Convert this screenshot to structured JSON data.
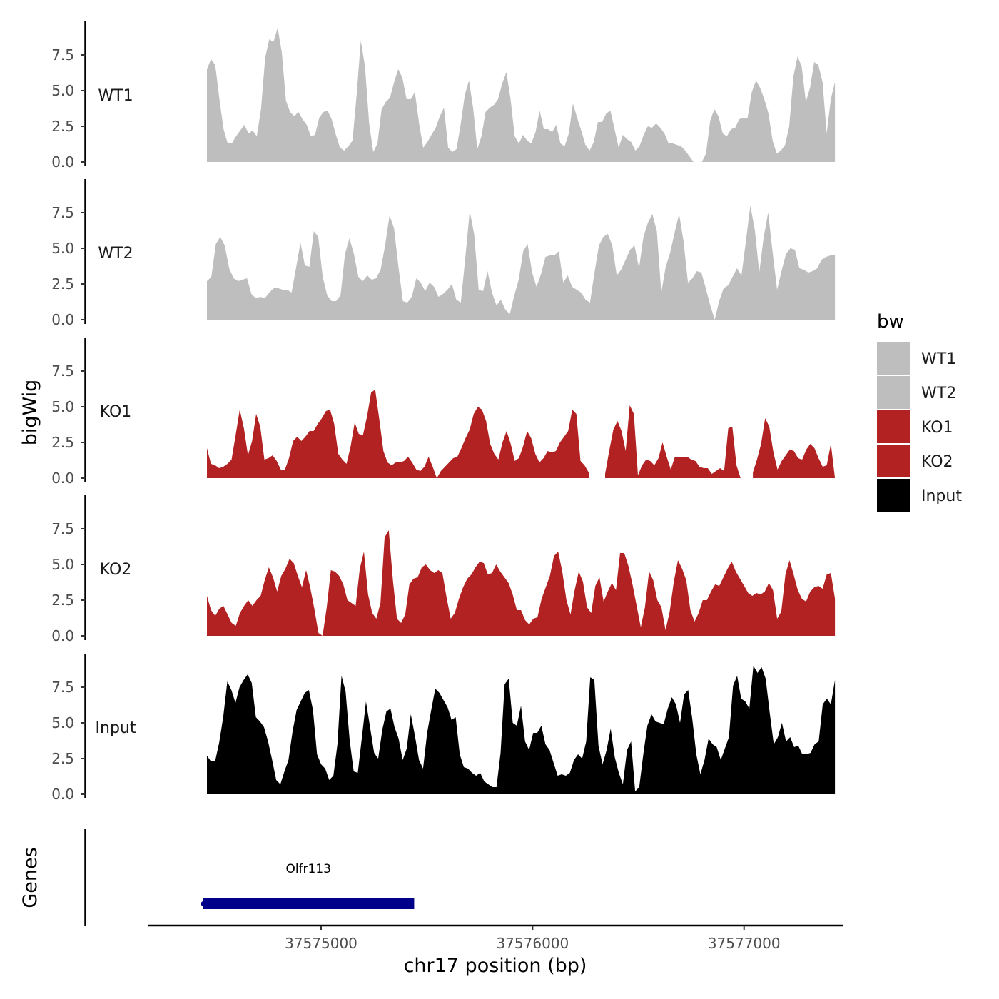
{
  "chart_data": {
    "type": "area",
    "title": "",
    "xlabel": "chr17 position (bp)",
    "ylabel": "bigWig",
    "gene_panel_label": "Genes",
    "x_range": [
      37574460,
      37577430
    ],
    "xlim": [
      37574180,
      37577470
    ],
    "x_ticks": [
      37575000,
      37576000,
      37577000
    ],
    "x_tick_labels": [
      "37575000",
      "37576000",
      "37577000"
    ],
    "ylim": [
      0,
      9.9
    ],
    "y_ticks": [
      0,
      2.5,
      5,
      7.5
    ],
    "y_tick_labels": [
      "0.0",
      "2.5",
      "5.0",
      "7.5"
    ],
    "legend_title": "bw",
    "series": [
      {
        "name": "WT1",
        "color": "#bebebe",
        "values": [
          6.5,
          7.2,
          6.8,
          4.4,
          2.3,
          1.3,
          1.3,
          1.8,
          2.2,
          2.6,
          2.0,
          2.2,
          1.8,
          3.7,
          7.3,
          8.6,
          8.4,
          9.4,
          7.7,
          4.3,
          3.5,
          3.2,
          3.5,
          3.0,
          2.6,
          1.8,
          1.9,
          3.1,
          3.5,
          3.6,
          3.0,
          1.9,
          1.0,
          0.8,
          1.1,
          1.5,
          4.7,
          8.5,
          6.7,
          2.7,
          0.7,
          1.3,
          3.7,
          4.2,
          4.5,
          5.6,
          6.5,
          5.9,
          4.4,
          4.4,
          4.9,
          2.7,
          1.0,
          1.4,
          1.9,
          2.4,
          3.2,
          3.8,
          1.0,
          0.7,
          0.9,
          2.6,
          4.7,
          5.7,
          3.8,
          0.9,
          1.8,
          3.5,
          3.8,
          4.0,
          4.4,
          5.5,
          6.3,
          4.4,
          1.8,
          1.3,
          1.9,
          1.5,
          1.3,
          2.1,
          3.6,
          2.3,
          2.3,
          2.1,
          2.6,
          1.3,
          1.1,
          2.0,
          4.1,
          3.1,
          2.2,
          1.2,
          0.8,
          1.4,
          2.8,
          2.8,
          3.4,
          3.6,
          2.3,
          1.0,
          1.9,
          1.6,
          1.4,
          0.8,
          1.1,
          1.9,
          2.5,
          2.4,
          2.7,
          2.4,
          2.0,
          1.3,
          1.3,
          1.2,
          1.1,
          0.8,
          0.4,
          0.0,
          null,
          0.0,
          0.6,
          2.9,
          3.7,
          3.2,
          2.0,
          1.8,
          2.3,
          2.4,
          3.0,
          3.1,
          3.1,
          4.9,
          5.7,
          5.2,
          4.4,
          3.4,
          1.5,
          0.6,
          0.8,
          1.2,
          2.5,
          6.0,
          7.4,
          6.7,
          4.2,
          5.2,
          7.0,
          6.8,
          5.6,
          2.0,
          4.4,
          5.6
        ]
      },
      {
        "name": "WT2",
        "color": "#bebebe",
        "values": [
          2.7,
          3.0,
          5.3,
          5.8,
          5.2,
          3.6,
          2.9,
          2.7,
          2.8,
          2.9,
          1.8,
          1.5,
          1.6,
          1.5,
          1.9,
          2.2,
          2.2,
          2.1,
          2.1,
          1.9,
          3.6,
          5.4,
          3.8,
          3.7,
          6.2,
          5.8,
          3.0,
          1.7,
          1.3,
          1.3,
          1.7,
          4.6,
          5.7,
          4.6,
          3.0,
          2.7,
          3.1,
          2.8,
          2.9,
          3.5,
          5.2,
          7.3,
          6.4,
          3.7,
          1.3,
          1.2,
          1.6,
          2.9,
          2.6,
          2.0,
          2.6,
          2.3,
          1.6,
          1.8,
          2.1,
          2.5,
          1.4,
          1.2,
          4.3,
          7.6,
          6.0,
          2.1,
          2.0,
          3.4,
          1.9,
          1.0,
          1.4,
          0.7,
          0.4,
          1.7,
          2.8,
          4.8,
          5.3,
          3.3,
          2.3,
          3.2,
          4.4,
          4.5,
          4.5,
          4.8,
          2.6,
          3.1,
          2.3,
          2.1,
          1.9,
          1.4,
          1.2,
          3.3,
          5.2,
          5.8,
          6.0,
          5.2,
          3.1,
          3.5,
          4.2,
          4.9,
          5.2,
          3.6,
          5.8,
          6.8,
          7.4,
          6.2,
          1.9,
          3.7,
          4.7,
          6.1,
          7.4,
          5.5,
          2.6,
          2.9,
          3.4,
          3.3,
          2.2,
          1.0,
          0.0,
          1.3,
          2.2,
          2.4,
          3.0,
          3.6,
          3.1,
          5.5,
          8.0,
          6.3,
          3.3,
          5.8,
          7.5,
          4.7,
          2.1,
          3.4,
          4.6,
          5.0,
          4.9,
          3.6,
          3.5,
          3.3,
          3.4,
          3.6,
          4.2,
          4.4,
          4.5,
          4.5
        ]
      },
      {
        "name": "KO1",
        "color": "#b22222",
        "values": [
          2.1,
          1.0,
          0.9,
          0.7,
          0.8,
          1.0,
          1.3,
          3.0,
          4.8,
          3.5,
          1.6,
          2.6,
          4.5,
          3.6,
          1.3,
          1.4,
          1.6,
          1.2,
          0.6,
          0.6,
          1.4,
          2.6,
          2.9,
          2.6,
          2.9,
          3.3,
          3.3,
          3.8,
          4.2,
          4.7,
          4.8,
          3.8,
          1.7,
          1.3,
          1.0,
          2.2,
          3.9,
          3.1,
          3.0,
          4.3,
          6.0,
          6.2,
          4.1,
          1.9,
          1.1,
          0.9,
          1.1,
          1.1,
          1.2,
          1.5,
          1.1,
          0.6,
          0.5,
          0.8,
          1.5,
          0.8,
          0.0,
          0.5,
          0.8,
          1.1,
          1.4,
          1.5,
          2.1,
          2.8,
          3.4,
          4.5,
          5.0,
          4.8,
          4.0,
          2.4,
          1.7,
          1.3,
          2.5,
          3.3,
          2.4,
          1.2,
          1.4,
          2.2,
          3.3,
          2.8,
          1.7,
          1.1,
          1.4,
          1.9,
          1.8,
          1.9,
          2.5,
          2.9,
          3.3,
          4.8,
          4.5,
          1.2,
          0.9,
          0.4,
          null,
          null,
          null,
          0.3,
          1.9,
          3.4,
          4.0,
          3.3,
          1.9,
          5.1,
          4.5,
          0.2,
          0.9,
          1.3,
          1.2,
          0.9,
          1.4,
          2.5,
          1.5,
          0.6,
          1.5,
          1.5,
          1.5,
          1.5,
          1.3,
          1.2,
          0.8,
          0.7,
          0.7,
          0.3,
          0.5,
          0.7,
          0.5,
          3.5,
          3.6,
          0.9,
          0.0,
          null,
          null,
          0.4,
          1.3,
          2.4,
          4.2,
          3.6,
          1.8,
          0.6,
          1.2,
          1.6,
          2.0,
          1.9,
          1.4,
          1.3,
          2.0,
          2.4,
          2.1,
          1.4,
          0.8,
          0.9,
          2.4,
          0.0
        ]
      },
      {
        "name": "KO2",
        "color": "#b22222",
        "values": [
          2.8,
          1.8,
          1.4,
          1.9,
          2.1,
          1.5,
          0.9,
          0.7,
          1.6,
          2.1,
          2.5,
          2.1,
          2.5,
          2.8,
          3.9,
          4.8,
          4.1,
          3.1,
          4.2,
          4.7,
          5.4,
          5.1,
          4.2,
          3.4,
          4.6,
          3.4,
          1.9,
          0.2,
          0.0,
          2.0,
          4.6,
          4.5,
          4.2,
          3.6,
          2.5,
          2.3,
          2.1,
          4.7,
          5.9,
          2.9,
          1.6,
          1.2,
          2.3,
          6.9,
          7.4,
          3.9,
          1.2,
          0.9,
          1.5,
          3.6,
          4.0,
          4.1,
          4.8,
          5.0,
          4.6,
          4.4,
          4.6,
          4.4,
          2.7,
          1.2,
          1.6,
          2.6,
          3.4,
          4.0,
          4.3,
          4.8,
          5.2,
          5.1,
          4.3,
          4.4,
          5.0,
          4.5,
          4.1,
          3.7,
          2.9,
          1.8,
          1.8,
          1.1,
          0.8,
          1.2,
          1.3,
          2.6,
          3.4,
          4.2,
          5.6,
          5.9,
          4.5,
          2.5,
          1.5,
          3.2,
          4.5,
          3.8,
          2.0,
          1.6,
          3.5,
          4.1,
          2.4,
          3.1,
          3.7,
          3.2,
          5.8,
          5.8,
          4.9,
          3.6,
          2.1,
          0.6,
          2.0,
          4.5,
          3.9,
          2.5,
          2.0,
          0.4,
          1.7,
          3.8,
          5.3,
          4.7,
          3.9,
          1.8,
          1.0,
          1.6,
          2.5,
          2.5,
          3.1,
          3.6,
          3.5,
          4.1,
          4.7,
          5.2,
          4.5,
          4.0,
          3.5,
          3.0,
          2.8,
          3.0,
          2.9,
          3.1,
          3.7,
          3.2,
          1.2,
          1.7,
          4.3,
          5.3,
          4.3,
          3.2,
          2.6,
          2.4,
          3.1,
          3.4,
          3.5,
          3.3,
          4.3,
          4.4,
          2.6
        ]
      },
      {
        "name": "Input",
        "color": "#000000",
        "values": [
          2.7,
          2.3,
          2.3,
          3.6,
          5.4,
          7.9,
          7.3,
          6.4,
          7.5,
          8.0,
          8.4,
          7.8,
          5.4,
          5.1,
          4.7,
          3.7,
          2.4,
          1.0,
          0.7,
          1.6,
          2.4,
          4.4,
          5.9,
          6.5,
          7.1,
          7.3,
          5.9,
          2.8,
          2.1,
          1.8,
          1.0,
          1.3,
          3.5,
          8.3,
          7.2,
          3.8,
          1.6,
          1.5,
          4.0,
          6.5,
          4.7,
          2.9,
          2.5,
          4.5,
          5.8,
          6.0,
          4.7,
          3.9,
          2.4,
          3.2,
          5.6,
          4.1,
          2.4,
          1.8,
          4.3,
          5.9,
          7.4,
          7.1,
          6.6,
          6.1,
          5.2,
          5.4,
          2.8,
          1.9,
          1.8,
          1.5,
          1.3,
          1.5,
          0.9,
          0.7,
          0.5,
          0.5,
          2.9,
          7.7,
          8.1,
          5.0,
          4.8,
          6.2,
          3.7,
          3.1,
          4.3,
          4.3,
          4.8,
          3.5,
          3.1,
          2.2,
          1.3,
          1.4,
          1.3,
          1.5,
          2.4,
          2.8,
          2.5,
          3.7,
          8.2,
          8.0,
          3.4,
          2.1,
          3.1,
          4.6,
          2.6,
          1.5,
          0.7,
          3.1,
          3.7,
          0.2,
          0.5,
          2.8,
          4.8,
          5.6,
          5.1,
          5.0,
          4.9,
          6.0,
          6.8,
          6.3,
          5.0,
          7.0,
          7.3,
          5.3,
          2.8,
          1.4,
          2.4,
          3.9,
          3.5,
          3.3,
          2.4,
          3.2,
          4.0,
          7.6,
          8.3,
          6.7,
          6.5,
          6.0,
          9.0,
          8.5,
          8.9,
          8.1,
          5.7,
          3.5,
          4.0,
          5.0,
          3.7,
          4.0,
          3.3,
          3.4,
          2.8,
          2.8,
          2.9,
          3.5,
          3.7,
          6.3,
          6.7,
          6.3,
          8.0
        ]
      }
    ],
    "genes": [
      {
        "name": "Olfr113",
        "start": 37574440,
        "end": 37575440,
        "color": "#00008b"
      }
    ]
  }
}
